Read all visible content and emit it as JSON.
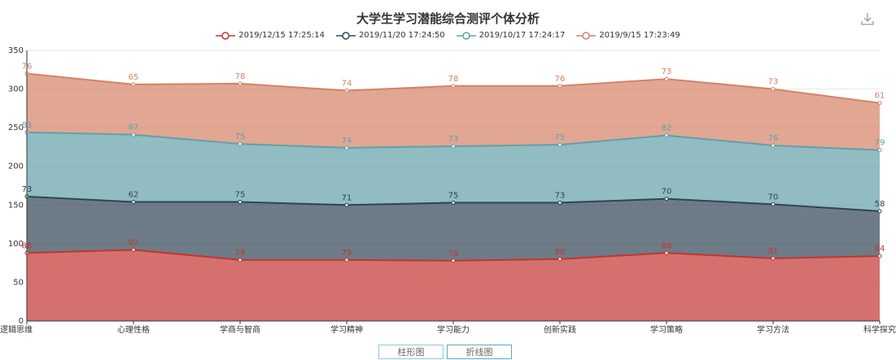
{
  "title": "大学生学习潜能综合测评个体分析",
  "icons": {
    "download": "download-icon"
  },
  "view_buttons": {
    "bar_label": "柱形图",
    "line_label": "折线图",
    "active": "line"
  },
  "chart_data": {
    "type": "area",
    "stacked": true,
    "categories": [
      "逻辑思维",
      "心理性格",
      "学商与智商",
      "学习精神",
      "学习能力",
      "创新实践",
      "学习策略",
      "学习方法",
      "科学探究"
    ],
    "ylim": [
      0,
      350
    ],
    "yticks": [
      0,
      50,
      100,
      150,
      200,
      250,
      300,
      350
    ],
    "grid": "horizontal",
    "legend_position": "top-center",
    "series": [
      {
        "name": "2019/12/15 17:25:14",
        "color": "#c23531",
        "values": [
          88,
          92,
          79,
          79,
          78,
          80,
          88,
          81,
          84
        ]
      },
      {
        "name": "2019/11/20 17:24:50",
        "color": "#2f4554",
        "values": [
          73,
          62,
          75,
          71,
          75,
          73,
          70,
          70,
          58
        ]
      },
      {
        "name": "2019/10/17 17:24:17",
        "color": "#61a0a8",
        "values": [
          83,
          87,
          75,
          74,
          73,
          75,
          82,
          76,
          79
        ]
      },
      {
        "name": "2019/9/15 17:23:49",
        "color": "#d48265",
        "values": [
          76,
          65,
          78,
          74,
          78,
          76,
          73,
          73,
          61
        ]
      }
    ]
  }
}
